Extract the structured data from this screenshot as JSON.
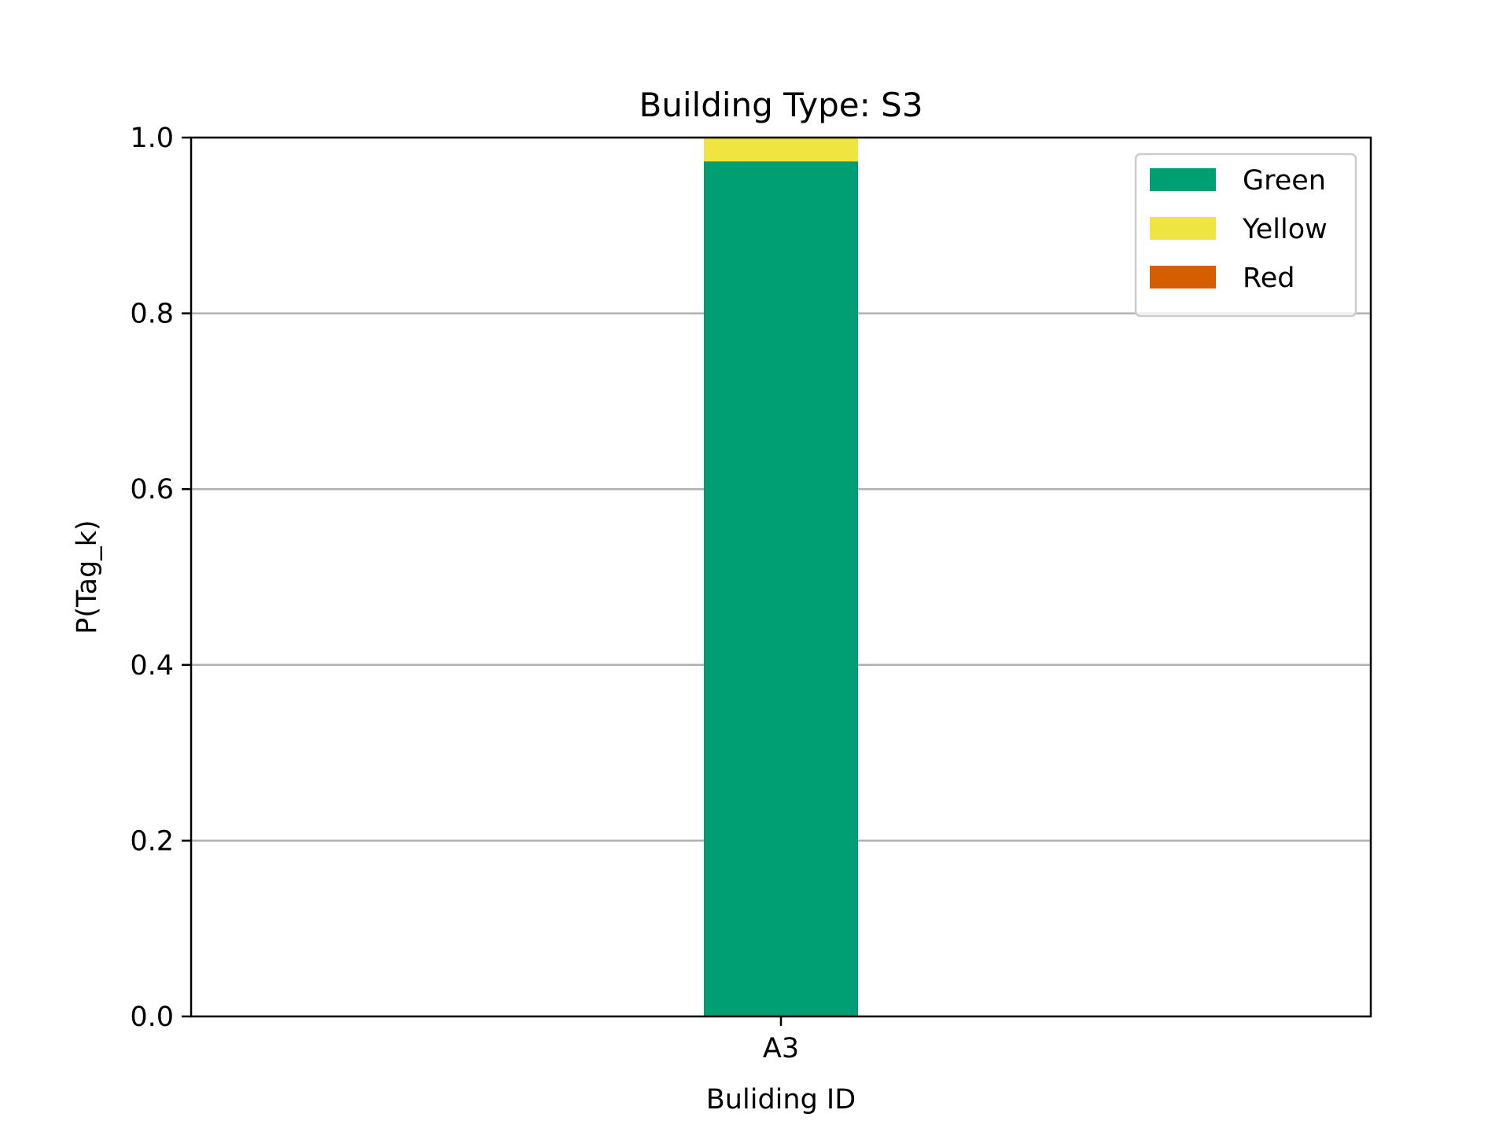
{
  "chart_data": {
    "type": "bar",
    "stacked": true,
    "title": "Building Type: S3",
    "xlabel": "Buliding ID",
    "ylabel": "P(Tag_k)",
    "categories": [
      "A3"
    ],
    "series": [
      {
        "name": "Green",
        "values": [
          0.973
        ],
        "color": "#009e73"
      },
      {
        "name": "Yellow",
        "values": [
          0.027
        ],
        "color": "#f0e442"
      },
      {
        "name": "Red",
        "values": [
          0.0
        ],
        "color": "#d55e00"
      }
    ],
    "ylim": [
      0,
      1.0
    ],
    "yticks": [
      "0.0",
      "0.2",
      "0.4",
      "0.6",
      "0.8",
      "1.0"
    ],
    "grid": "y",
    "legend_position": "top-right"
  }
}
